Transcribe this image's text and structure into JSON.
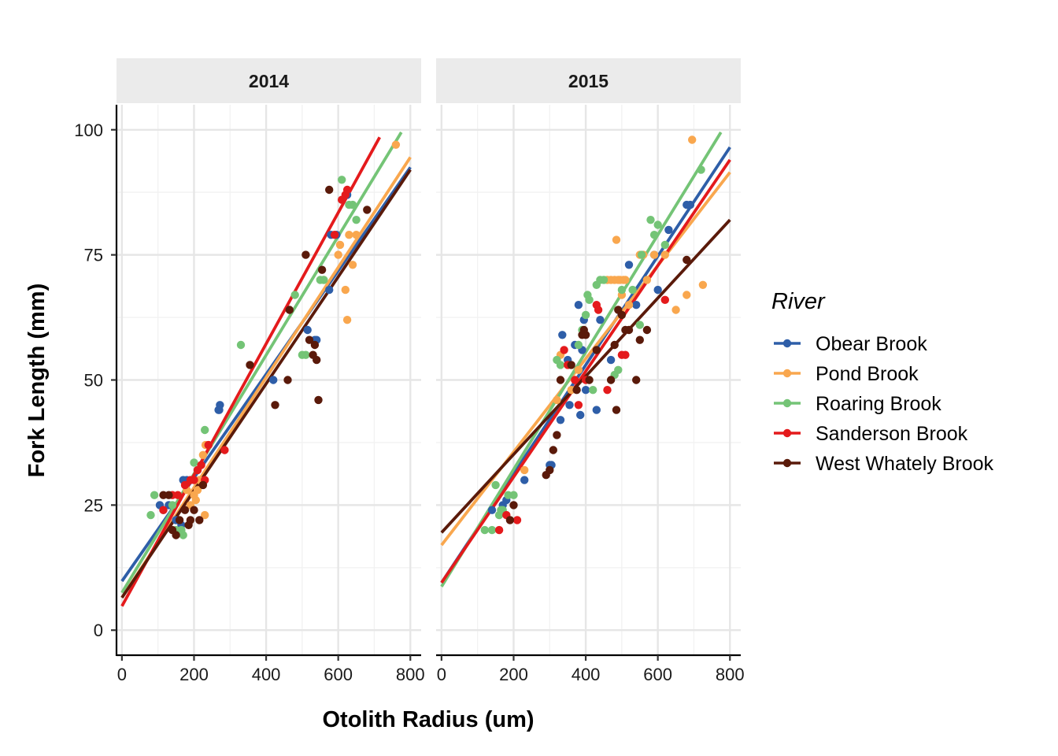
{
  "chart_data": {
    "type": "scatter",
    "xlabel": "Otolith Radius (um)",
    "ylabel": "Fork Length (mm)",
    "xlim": [
      -15,
      830
    ],
    "ylim": [
      -5,
      105
    ],
    "x_ticks": [
      "0",
      "200",
      "400",
      "600",
      "800"
    ],
    "y_ticks": [
      "0",
      "25",
      "50",
      "75",
      "100"
    ],
    "legend": {
      "title": "River",
      "position": "right"
    },
    "series": [
      {
        "name": "Obear Brook",
        "color": "#2E5EA8"
      },
      {
        "name": "Pond Brook",
        "color": "#F9A74E"
      },
      {
        "name": "Roaring Brook",
        "color": "#74C476"
      },
      {
        "name": "Sanderson Brook",
        "color": "#E41A1C"
      },
      {
        "name": "West Whately Brook",
        "color": "#5A1A0A"
      }
    ],
    "panels": [
      {
        "label": "2014",
        "fits": [
          {
            "series": "Obear Brook",
            "x": [
              0,
              800
            ],
            "y": [
              9.8,
              92.5
            ]
          },
          {
            "series": "Pond Brook",
            "x": [
              0,
              800
            ],
            "y": [
              6.5,
              94.5
            ]
          },
          {
            "series": "Roaring Brook",
            "x": [
              0,
              775
            ],
            "y": [
              7.5,
              99.5
            ]
          },
          {
            "series": "Sanderson Brook",
            "x": [
              0,
              715
            ],
            "y": [
              4.8,
              98.5
            ]
          },
          {
            "series": "West Whately Brook",
            "x": [
              0,
              800
            ],
            "y": [
              6.5,
              92
            ]
          }
        ],
        "points": [
          {
            "series": "Obear Brook",
            "x": [
              105,
              115,
              130,
              150,
              160,
              165,
              170,
              180,
              270,
              272,
              268,
              420,
              515,
              535,
              540,
              575,
              580,
              595,
              625
            ],
            "y": [
              25,
              24,
              25,
              22,
              20,
              21,
              30,
              30,
              44,
              45,
              44,
              50,
              60,
              58,
              58,
              68,
              79,
              79,
              87
            ]
          },
          {
            "series": "Pond Brook",
            "x": [
              180,
              190,
              200,
              205,
              210,
              215,
              225,
              230,
              232,
              240,
              560,
              600,
              605,
              620,
              625,
              630,
              640,
              650,
              760
            ],
            "y": [
              28,
              25,
              27,
              26,
              28,
              30,
              35,
              23,
              37,
              37,
              70,
              75,
              77,
              68,
              62,
              79,
              73,
              79,
              97
            ]
          },
          {
            "series": "Roaring Brook",
            "x": [
              80,
              90,
              140,
              150,
              165,
              170,
              200,
              210,
              230,
              330,
              480,
              500,
              510,
              550,
              560,
              610,
              630,
              640,
              650
            ],
            "y": [
              23,
              27,
              25,
              20,
              20,
              19,
              33.5,
              32,
              40,
              57,
              67,
              55,
              55,
              70,
              70,
              90,
              85,
              85,
              82
            ]
          },
          {
            "series": "Sanderson Brook",
            "x": [
              115,
              140,
              155,
              175,
              190,
              200,
              210,
              220,
              230,
              240,
              285,
              590,
              610,
              620,
              625
            ],
            "y": [
              24,
              27,
              27,
              29,
              30,
              30,
              32,
              33,
              30,
              37,
              36,
              79,
              86,
              87,
              88
            ]
          },
          {
            "series": "West Whately Brook",
            "x": [
              115,
              130,
              140,
              150,
              160,
              175,
              185,
              190,
              200,
              215,
              225,
              355,
              425,
              460,
              465,
              510,
              520,
              530,
              535,
              540,
              545,
              555,
              575,
              680
            ],
            "y": [
              27,
              27,
              20,
              19,
              22,
              24,
              21,
              22,
              24,
              22,
              29,
              53,
              45,
              50,
              64,
              75,
              58,
              55,
              57,
              54,
              46,
              72,
              88,
              84
            ]
          }
        ]
      },
      {
        "label": "2015",
        "fits": [
          {
            "series": "Obear Brook",
            "x": [
              0,
              800
            ],
            "y": [
              9.5,
              96.5
            ]
          },
          {
            "series": "Pond Brook",
            "x": [
              0,
              800
            ],
            "y": [
              17,
              91.5
            ]
          },
          {
            "series": "Roaring Brook",
            "x": [
              0,
              775
            ],
            "y": [
              8.7,
              99.5
            ]
          },
          {
            "series": "Sanderson Brook",
            "x": [
              0,
              800
            ],
            "y": [
              9.5,
              94
            ]
          },
          {
            "series": "West Whately Brook",
            "x": [
              0,
              800
            ],
            "y": [
              19.5,
              82
            ]
          }
        ],
        "points": [
          {
            "series": "Obear Brook",
            "x": [
              140,
              170,
              180,
              230,
              300,
              305,
              330,
              335,
              350,
              355,
              370,
              380,
              385,
              390,
              395,
              400,
              430,
              440,
              470,
              520,
              540,
              590,
              600,
              630,
              680,
              690
            ],
            "y": [
              24,
              25,
              26,
              30,
              33,
              33,
              42,
              59,
              54,
              45,
              57,
              65,
              43,
              56,
              62,
              48,
              44,
              62,
              54,
              73,
              65,
              75,
              68,
              80,
              85,
              85
            ]
          },
          {
            "series": "Pond Brook",
            "x": [
              230,
              320,
              330,
              360,
              380,
              460,
              470,
              480,
              485,
              490,
              495,
              500,
              505,
              510,
              520,
              550,
              560,
              570,
              590,
              620,
              650,
              680,
              695,
              725
            ],
            "y": [
              32,
              46,
              55,
              48,
              52,
              70,
              70,
              70,
              78,
              70,
              70,
              67,
              70,
              70,
              65,
              75,
              75,
              70,
              75,
              75,
              64,
              67,
              98,
              69
            ]
          },
          {
            "series": "Roaring Brook",
            "x": [
              120,
              140,
              150,
              160,
              165,
              170,
              185,
              200,
              320,
              330,
              380,
              390,
              400,
              405,
              410,
              420,
              430,
              440,
              450,
              480,
              490,
              500,
              530,
              550,
              555,
              580,
              590,
              600,
              620,
              720
            ],
            "y": [
              20,
              20,
              29,
              23,
              24,
              24,
              27,
              27,
              54,
              53,
              57,
              60,
              63,
              67,
              66,
              48,
              69,
              70,
              70,
              51,
              52,
              68,
              68,
              61,
              75,
              82,
              79,
              81,
              77,
              92
            ]
          },
          {
            "series": "Sanderson Brook",
            "x": [
              160,
              180,
              210,
              340,
              350,
              370,
              380,
              400,
              430,
              435,
              460,
              500,
              510,
              620
            ],
            "y": [
              20,
              23,
              22,
              56,
              53,
              50,
              45,
              50,
              65,
              64,
              48,
              55,
              55,
              66
            ]
          },
          {
            "series": "West Whately Brook",
            "x": [
              190,
              200,
              290,
              300,
              310,
              320,
              330,
              360,
              375,
              390,
              395,
              400,
              410,
              430,
              470,
              480,
              485,
              490,
              500,
              510,
              520,
              540,
              550,
              570,
              680
            ],
            "y": [
              22,
              25,
              31,
              32,
              36,
              39,
              50,
              53,
              48,
              59,
              60,
              59,
              50,
              56,
              50,
              57,
              44,
              64,
              63,
              60,
              60,
              50,
              58,
              60,
              74
            ]
          }
        ]
      }
    ]
  }
}
